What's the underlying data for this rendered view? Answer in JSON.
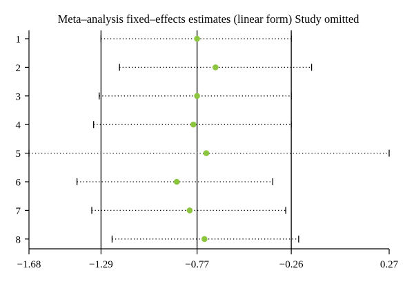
{
  "chart_data": {
    "type": "scatter",
    "title": "Meta–analysis fixed–effects estimates (linear form) Study omitted",
    "x_ticks": [
      -1.68,
      -1.29,
      -0.77,
      -0.26,
      0.27
    ],
    "x_tick_labels": [
      "−1.68",
      "−1.29",
      "−0.77",
      "−0.26",
      "0.27"
    ],
    "reference_lines": [
      -1.29,
      -0.77,
      -0.26
    ],
    "grid": false,
    "studies": [
      {
        "label": "1",
        "estimate": -0.77,
        "lower": -1.29,
        "upper": -0.26
      },
      {
        "label": "2",
        "estimate": -0.67,
        "lower": -1.19,
        "upper": -0.15
      },
      {
        "label": "3",
        "estimate": -0.77,
        "lower": -1.3,
        "upper": -0.26
      },
      {
        "label": "4",
        "estimate": -0.79,
        "lower": -1.33,
        "upper": -0.26
      },
      {
        "label": "5",
        "estimate": -0.72,
        "lower": -1.68,
        "upper": 0.27
      },
      {
        "label": "6",
        "estimate": -0.88,
        "lower": -1.42,
        "upper": -0.36
      },
      {
        "label": "7",
        "estimate": -0.81,
        "lower": -1.34,
        "upper": -0.29
      },
      {
        "label": "8",
        "estimate": -0.73,
        "lower": -1.23,
        "upper": -0.22
      }
    ],
    "colors": {
      "estimate_marker": "#8cc63f",
      "lines": "#000000"
    }
  }
}
